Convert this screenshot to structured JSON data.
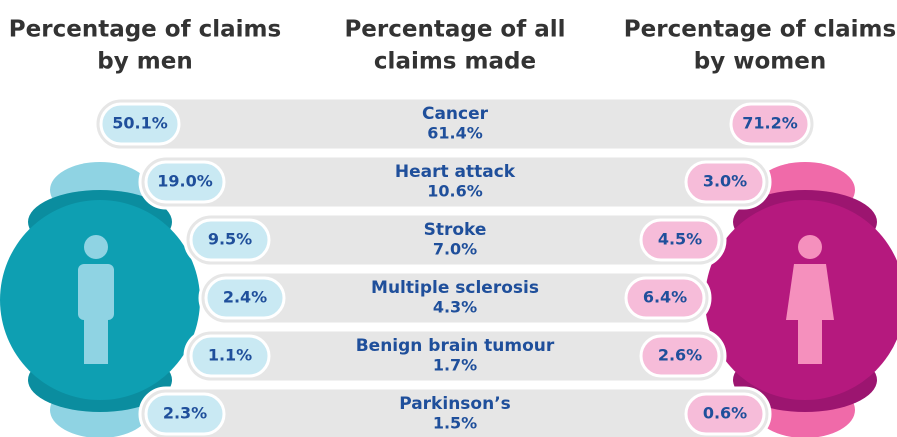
{
  "header": {
    "men": [
      "Percentage of claims",
      "by men"
    ],
    "all": [
      "Percentage of all",
      "claims made"
    ],
    "women": [
      "Percentage of claims",
      "by women"
    ]
  },
  "rows": [
    {
      "name": "Cancer",
      "all": "61.4%",
      "men": "50.1%",
      "women": "71.2%"
    },
    {
      "name": "Heart attack",
      "all": "10.6%",
      "men": "19.0%",
      "women": "3.0%"
    },
    {
      "name": "Stroke",
      "all": "7.0%",
      "men": "9.5%",
      "women": "4.5%"
    },
    {
      "name": "Multiple sclerosis",
      "all": "4.3%",
      "men": "2.4%",
      "women": "6.4%"
    },
    {
      "name": "Benign brain tumour",
      "all": "1.7%",
      "men": "1.1%",
      "women": "2.6%"
    },
    {
      "name": "Parkinson’s",
      "all": "1.5%",
      "men": "2.3%",
      "women": "0.6%"
    }
  ]
}
